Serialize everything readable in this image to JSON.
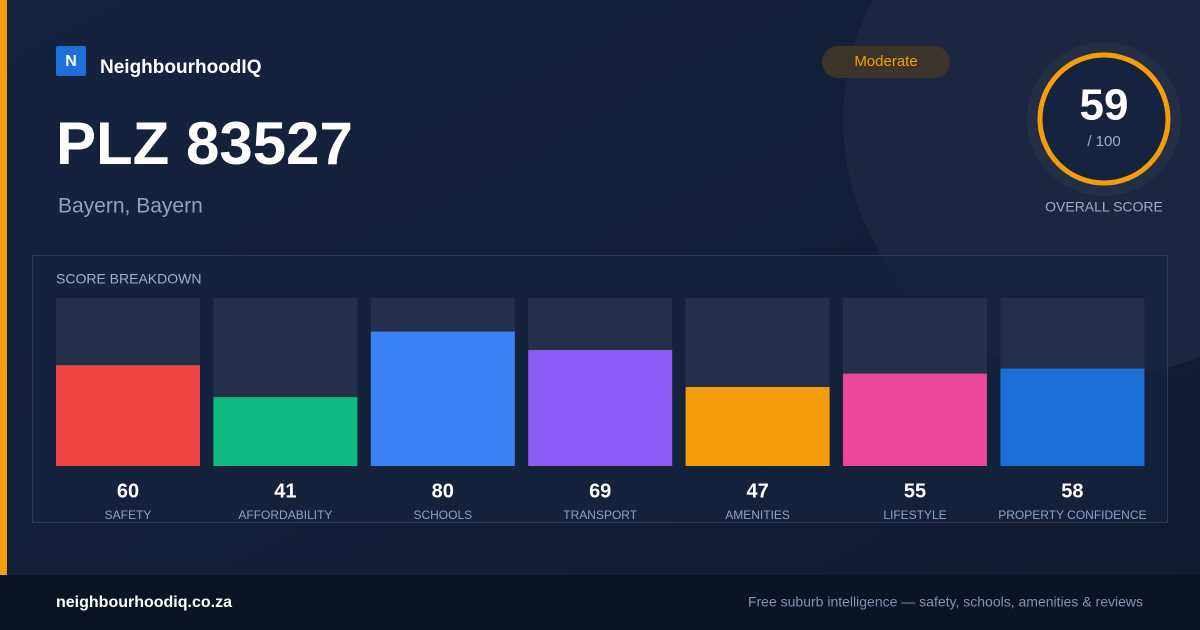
{
  "brand": {
    "logo": "N",
    "name": "NeighbourhoodIQ"
  },
  "badge": "Moderate",
  "header": {
    "title": "PLZ 83527",
    "subtitle": "Bayern, Bayern"
  },
  "score": {
    "value": 59,
    "max_label": "/ 100",
    "label": "OVERALL SCORE"
  },
  "chart_data": {
    "type": "bar",
    "title": "SCORE BREAKDOWN",
    "categories": [
      "SAFETY",
      "AFFORDABILITY",
      "SCHOOLS",
      "TRANSPORT",
      "AMENITIES",
      "LIFESTYLE",
      "PROPERTY CONFIDENCE"
    ],
    "values": [
      60,
      41,
      80,
      69,
      47,
      55,
      58
    ],
    "colors": [
      "#ef4444",
      "#10b981",
      "#3b82f6",
      "#8b5cf6",
      "#f59e0b",
      "#ec4899",
      "#1d6fd8"
    ],
    "ylim": [
      0,
      100
    ]
  },
  "footer": {
    "url": "neighbourhoodiq.co.za",
    "tagline": "Free suburb intelligence — safety, schools, amenities & reviews"
  }
}
